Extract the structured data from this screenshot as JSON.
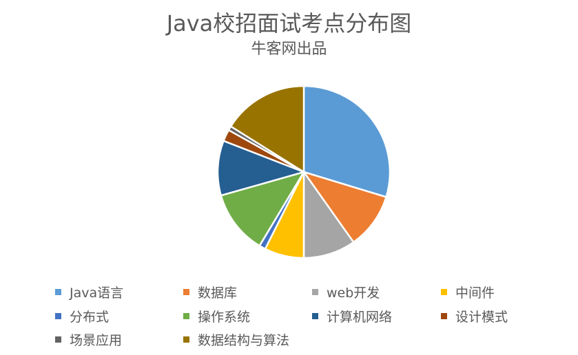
{
  "chart_data": {
    "type": "pie",
    "title": "Java校招面试考点分布图",
    "subtitle": "牛客网出品",
    "categories": [
      "Java语言",
      "数据库",
      "web开发",
      "中间件",
      "分布式",
      "操作系统",
      "计算机网络",
      "设计模式",
      "场景应用",
      "数据结构与算法"
    ],
    "values": [
      29.7,
      10.5,
      9.8,
      7.4,
      1.2,
      12.0,
      10.3,
      2.2,
      0.8,
      16.1
    ],
    "colors": [
      "#5B9BD5",
      "#ED7D31",
      "#A5A5A5",
      "#FFC000",
      "#4472C4",
      "#70AD47",
      "#255E91",
      "#9E480E",
      "#636363",
      "#997300"
    ],
    "unit": "%",
    "start_angle_deg": 0,
    "direction": "clockwise",
    "legend_position": "bottom"
  },
  "legend": {
    "items": [
      {
        "label": "Java语言",
        "color": "#5B9BD5"
      },
      {
        "label": "数据库",
        "color": "#ED7D31"
      },
      {
        "label": "web开发",
        "color": "#A5A5A5"
      },
      {
        "label": "中间件",
        "color": "#FFC000"
      },
      {
        "label": "分布式",
        "color": "#4472C4"
      },
      {
        "label": "操作系统",
        "color": "#70AD47"
      },
      {
        "label": "计算机网络",
        "color": "#255E91"
      },
      {
        "label": "设计模式",
        "color": "#9E480E"
      },
      {
        "label": "场景应用",
        "color": "#636363"
      },
      {
        "label": "数据结构与算法",
        "color": "#997300"
      }
    ]
  }
}
